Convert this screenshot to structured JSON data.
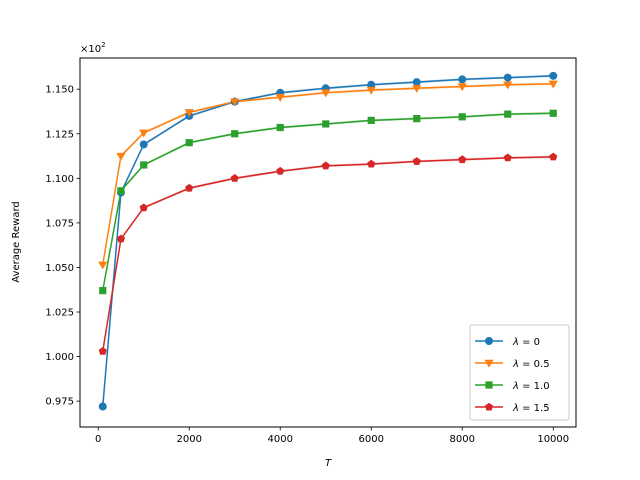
{
  "chart_data": {
    "type": "line",
    "xlabel": "T",
    "ylabel": "Average Reward",
    "y_multiplier": "×10",
    "y_multiplier_exp": "2",
    "x": [
      100,
      500,
      1000,
      2000,
      3000,
      4000,
      5000,
      6000,
      7000,
      8000,
      9000,
      10000
    ],
    "xlim": [
      -400,
      10500
    ],
    "ylim": [
      0.9605,
      1.1675
    ],
    "xticks": [
      0,
      2000,
      4000,
      6000,
      8000,
      10000
    ],
    "xtick_labels": [
      "0",
      "2000",
      "4000",
      "6000",
      "8000",
      "10000"
    ],
    "yticks": [
      0.975,
      1.0,
      1.025,
      1.05,
      1.075,
      1.1,
      1.125,
      1.15
    ],
    "ytick_labels": [
      "0.975",
      "1.000",
      "1.025",
      "1.050",
      "1.075",
      "1.100",
      "1.125",
      "1.150"
    ],
    "grid": false,
    "legend_position": "bottom-right",
    "series": [
      {
        "name": "λ = 0",
        "legend_prefix": "λ",
        "legend_value": "0",
        "color": "#1f77b4",
        "marker": "circle",
        "values": [
          0.972,
          1.092,
          1.119,
          1.135,
          1.143,
          1.148,
          1.1505,
          1.1525,
          1.154,
          1.1555,
          1.1565,
          1.1575
        ]
      },
      {
        "name": "λ = 0.5",
        "legend_prefix": "λ",
        "legend_value": "0.5",
        "color": "#ff7f0e",
        "marker": "triangle-down",
        "values": [
          1.0515,
          1.1125,
          1.1255,
          1.137,
          1.143,
          1.1455,
          1.148,
          1.1495,
          1.1505,
          1.1515,
          1.1525,
          1.153
        ]
      },
      {
        "name": "λ = 1.0",
        "legend_prefix": "λ",
        "legend_value": "1.0",
        "color": "#2ca02c",
        "marker": "square",
        "values": [
          1.037,
          1.093,
          1.1075,
          1.12,
          1.125,
          1.1285,
          1.1305,
          1.1325,
          1.1335,
          1.1345,
          1.136,
          1.1365
        ]
      },
      {
        "name": "λ = 1.5",
        "legend_prefix": "λ",
        "legend_value": "1.5",
        "color": "#d62728",
        "marker": "pentagon",
        "values": [
          1.003,
          1.066,
          1.0835,
          1.0945,
          1.1,
          1.104,
          1.107,
          1.108,
          1.1095,
          1.1105,
          1.1115,
          1.112
        ]
      }
    ]
  }
}
